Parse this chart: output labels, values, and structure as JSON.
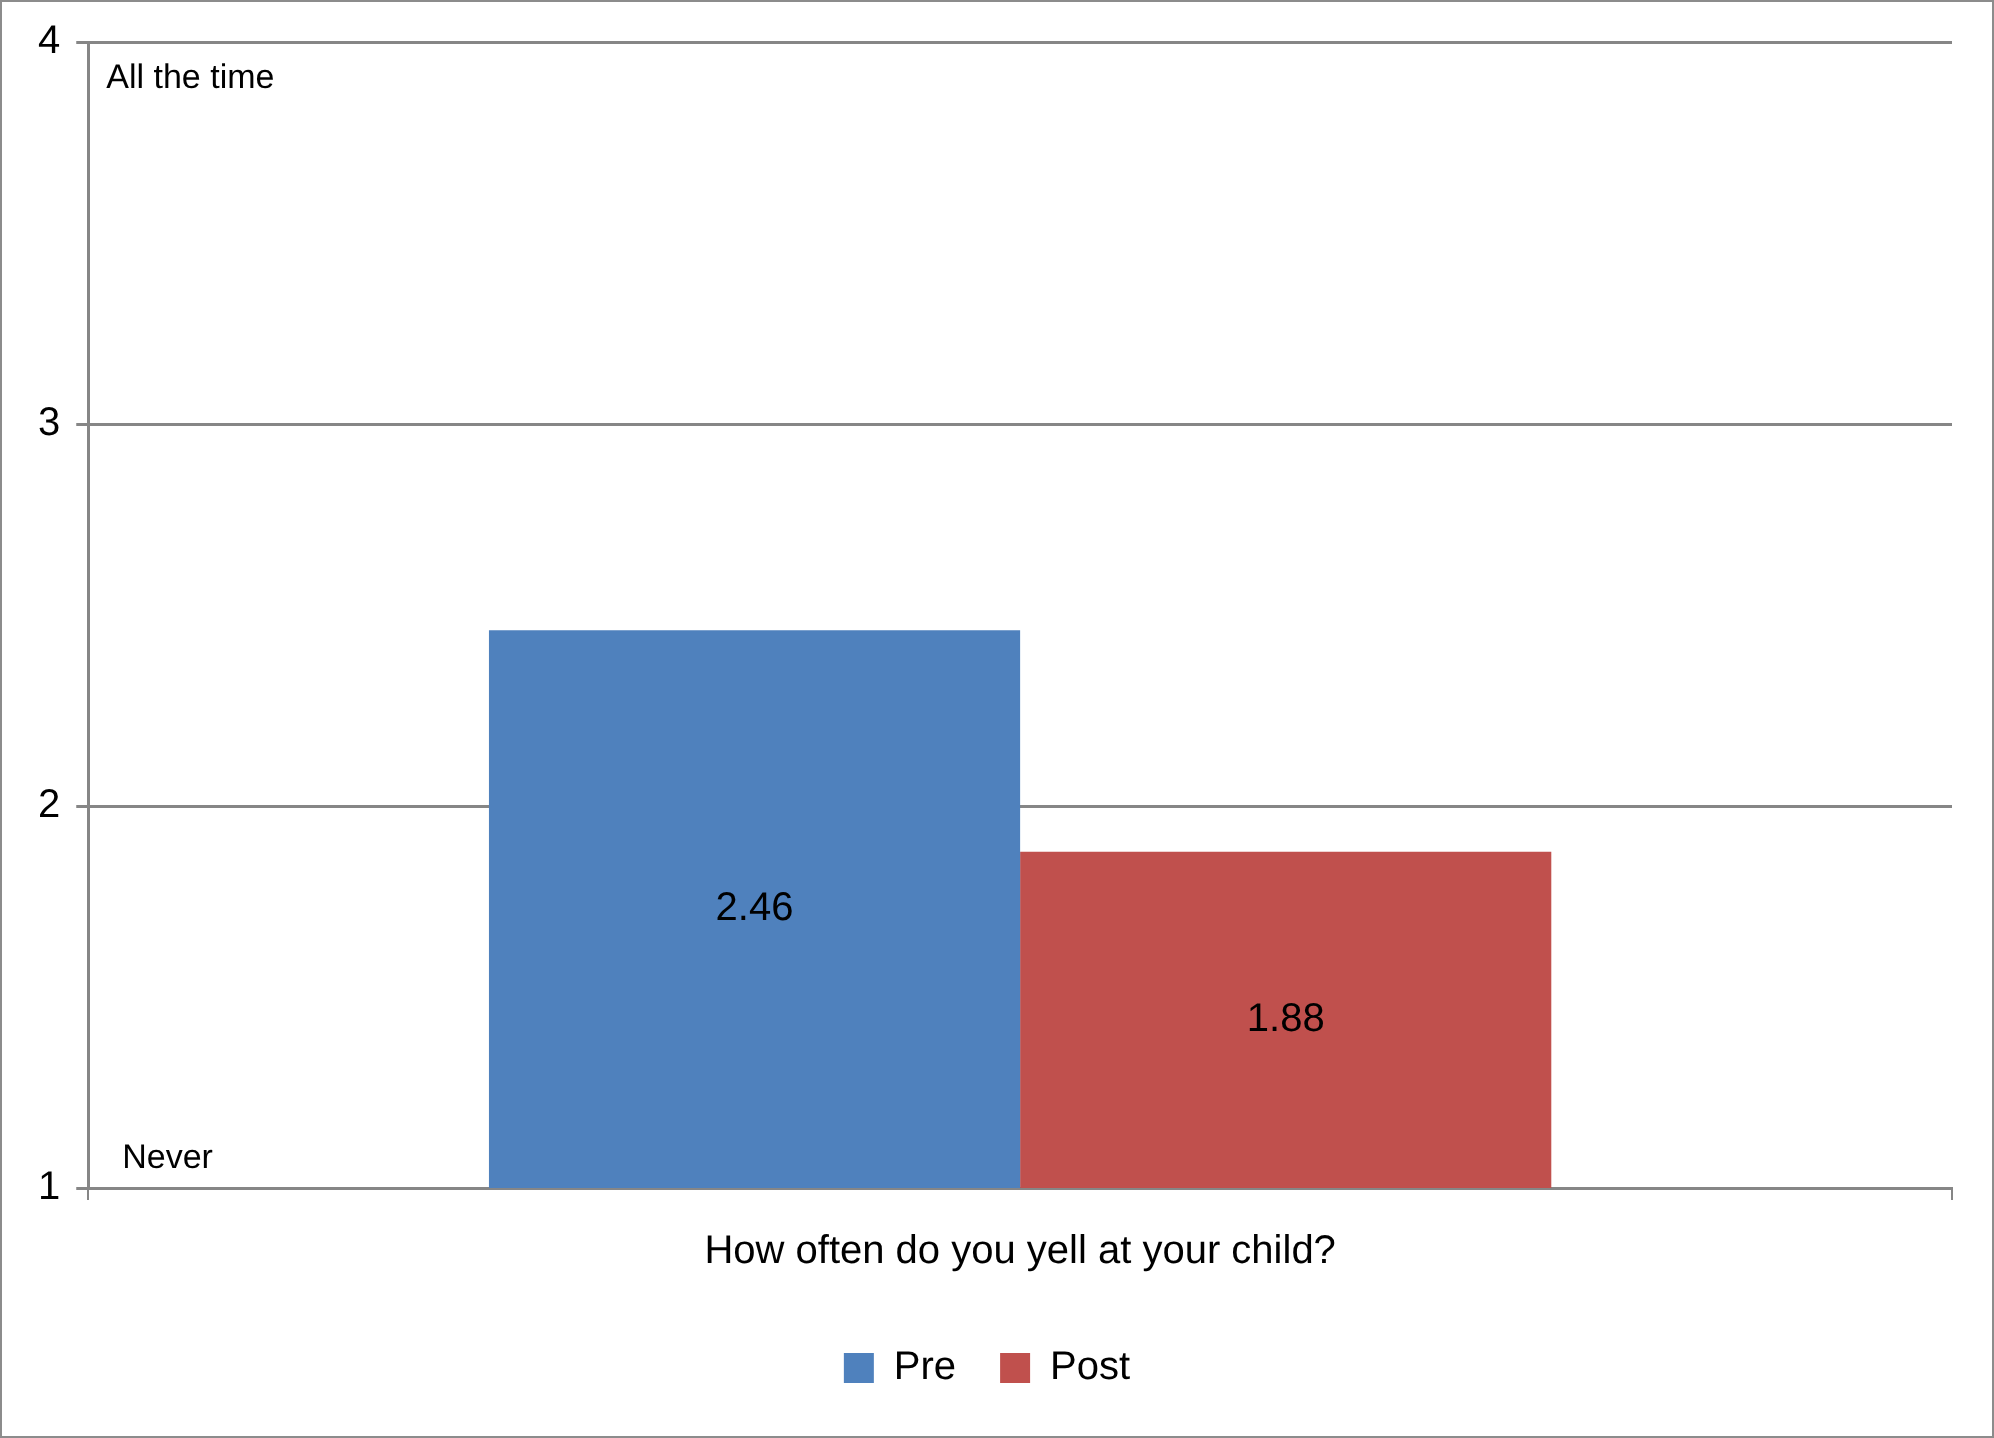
{
  "chart_data": {
    "type": "bar",
    "categories": [
      "How often do you yell at your child?"
    ],
    "series": [
      {
        "name": "Pre",
        "color": "#4f81bd",
        "values": [
          2.46
        ]
      },
      {
        "name": "Post",
        "color": "#c0504d",
        "values": [
          1.88
        ]
      }
    ],
    "ylim": [
      1,
      4
    ],
    "yticks": [
      1,
      2,
      3,
      4
    ],
    "grid": "y",
    "legend": "bottom",
    "data_labels": true,
    "annotations": [
      "All the time",
      "Never"
    ]
  }
}
